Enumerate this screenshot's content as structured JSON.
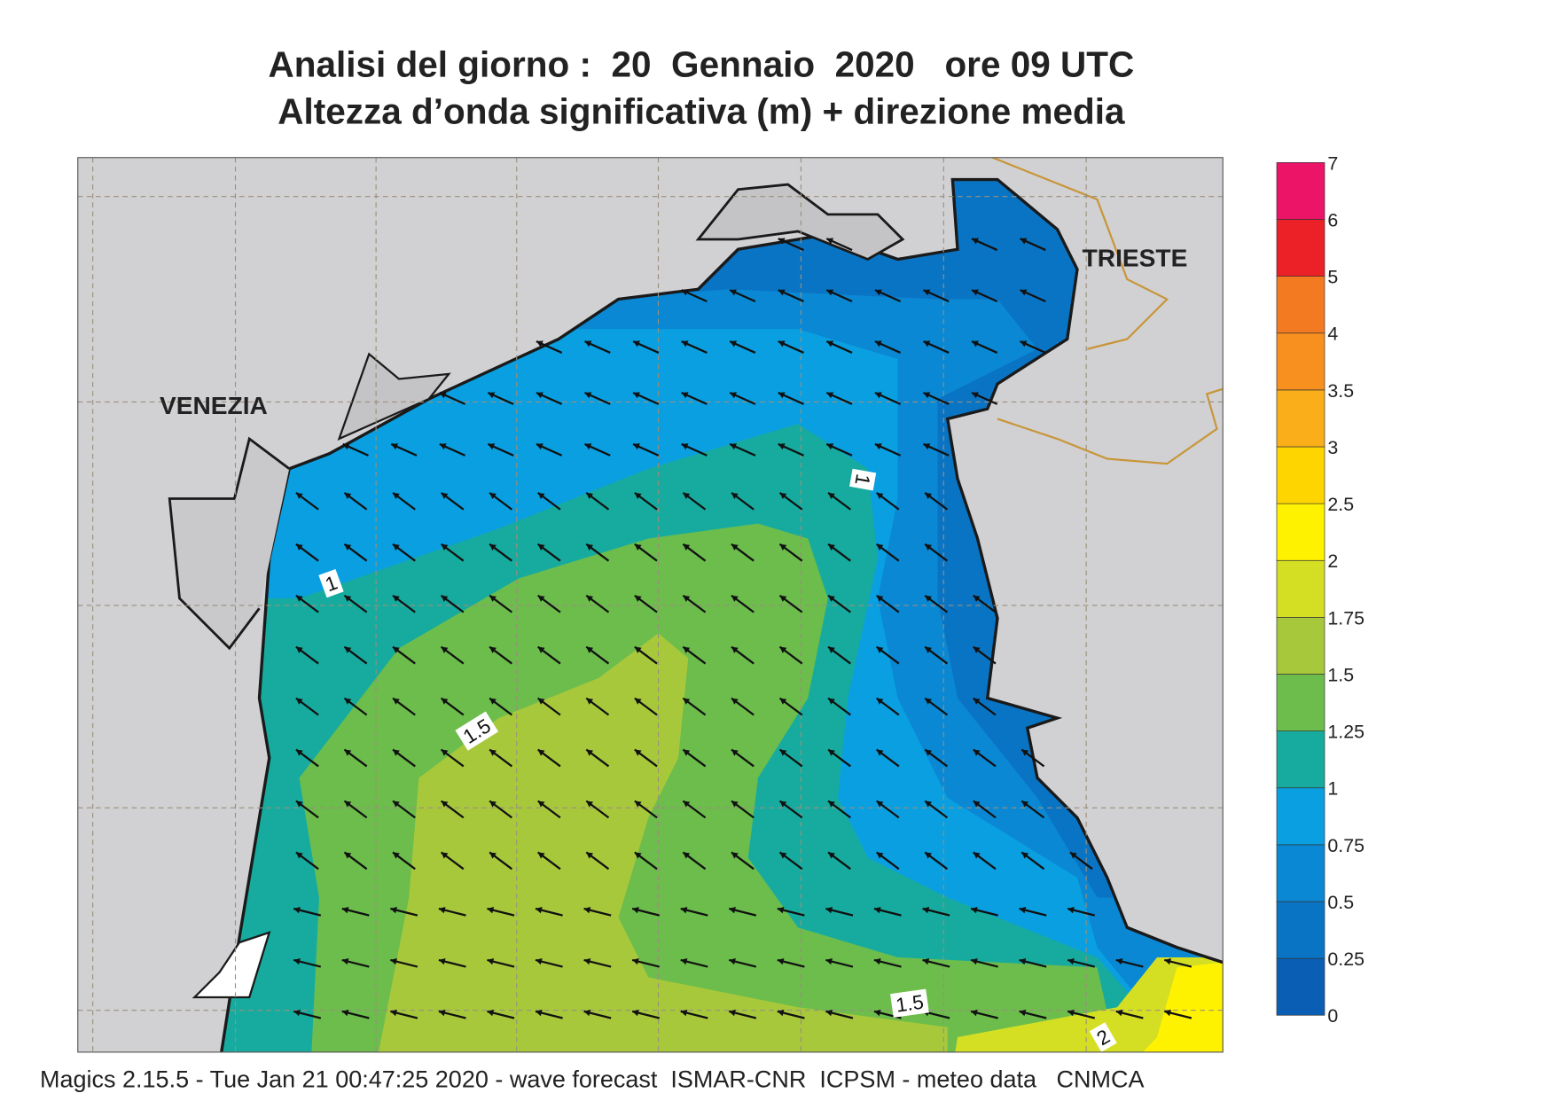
{
  "header": {
    "title": "Analisi del giorno :  20  Gennaio  2020   ore 09 UTC",
    "subtitle": "Altezza d’onda significativa (m) + direzione media"
  },
  "map": {
    "places": [
      "VENEZIA",
      "TRIESTE"
    ],
    "contour_labels": [
      1,
      1,
      1.5,
      1.5,
      2
    ]
  },
  "colorbar": {
    "levels": [
      0,
      0.25,
      0.5,
      0.75,
      1,
      1.25,
      1.5,
      1.75,
      2,
      2.5,
      3,
      3.5,
      4,
      5,
      6,
      7
    ],
    "colors": [
      "#0a5fb4",
      "#0a74c4",
      "#0a88d3",
      "#0a9fe0",
      "#17ab9f",
      "#6cbd4c",
      "#a8c83c",
      "#d4df24",
      "#fff200",
      "#ffd500",
      "#f9ae1a",
      "#f7901e",
      "#f47a22",
      "#ec2027",
      "#ec1466"
    ]
  },
  "footer": "Magics 2.15.5 - Tue Jan 21 00:47:25 2020 - wave forecast  ISMAR-CNR  ICPSM - meteo data   CNMCA"
}
